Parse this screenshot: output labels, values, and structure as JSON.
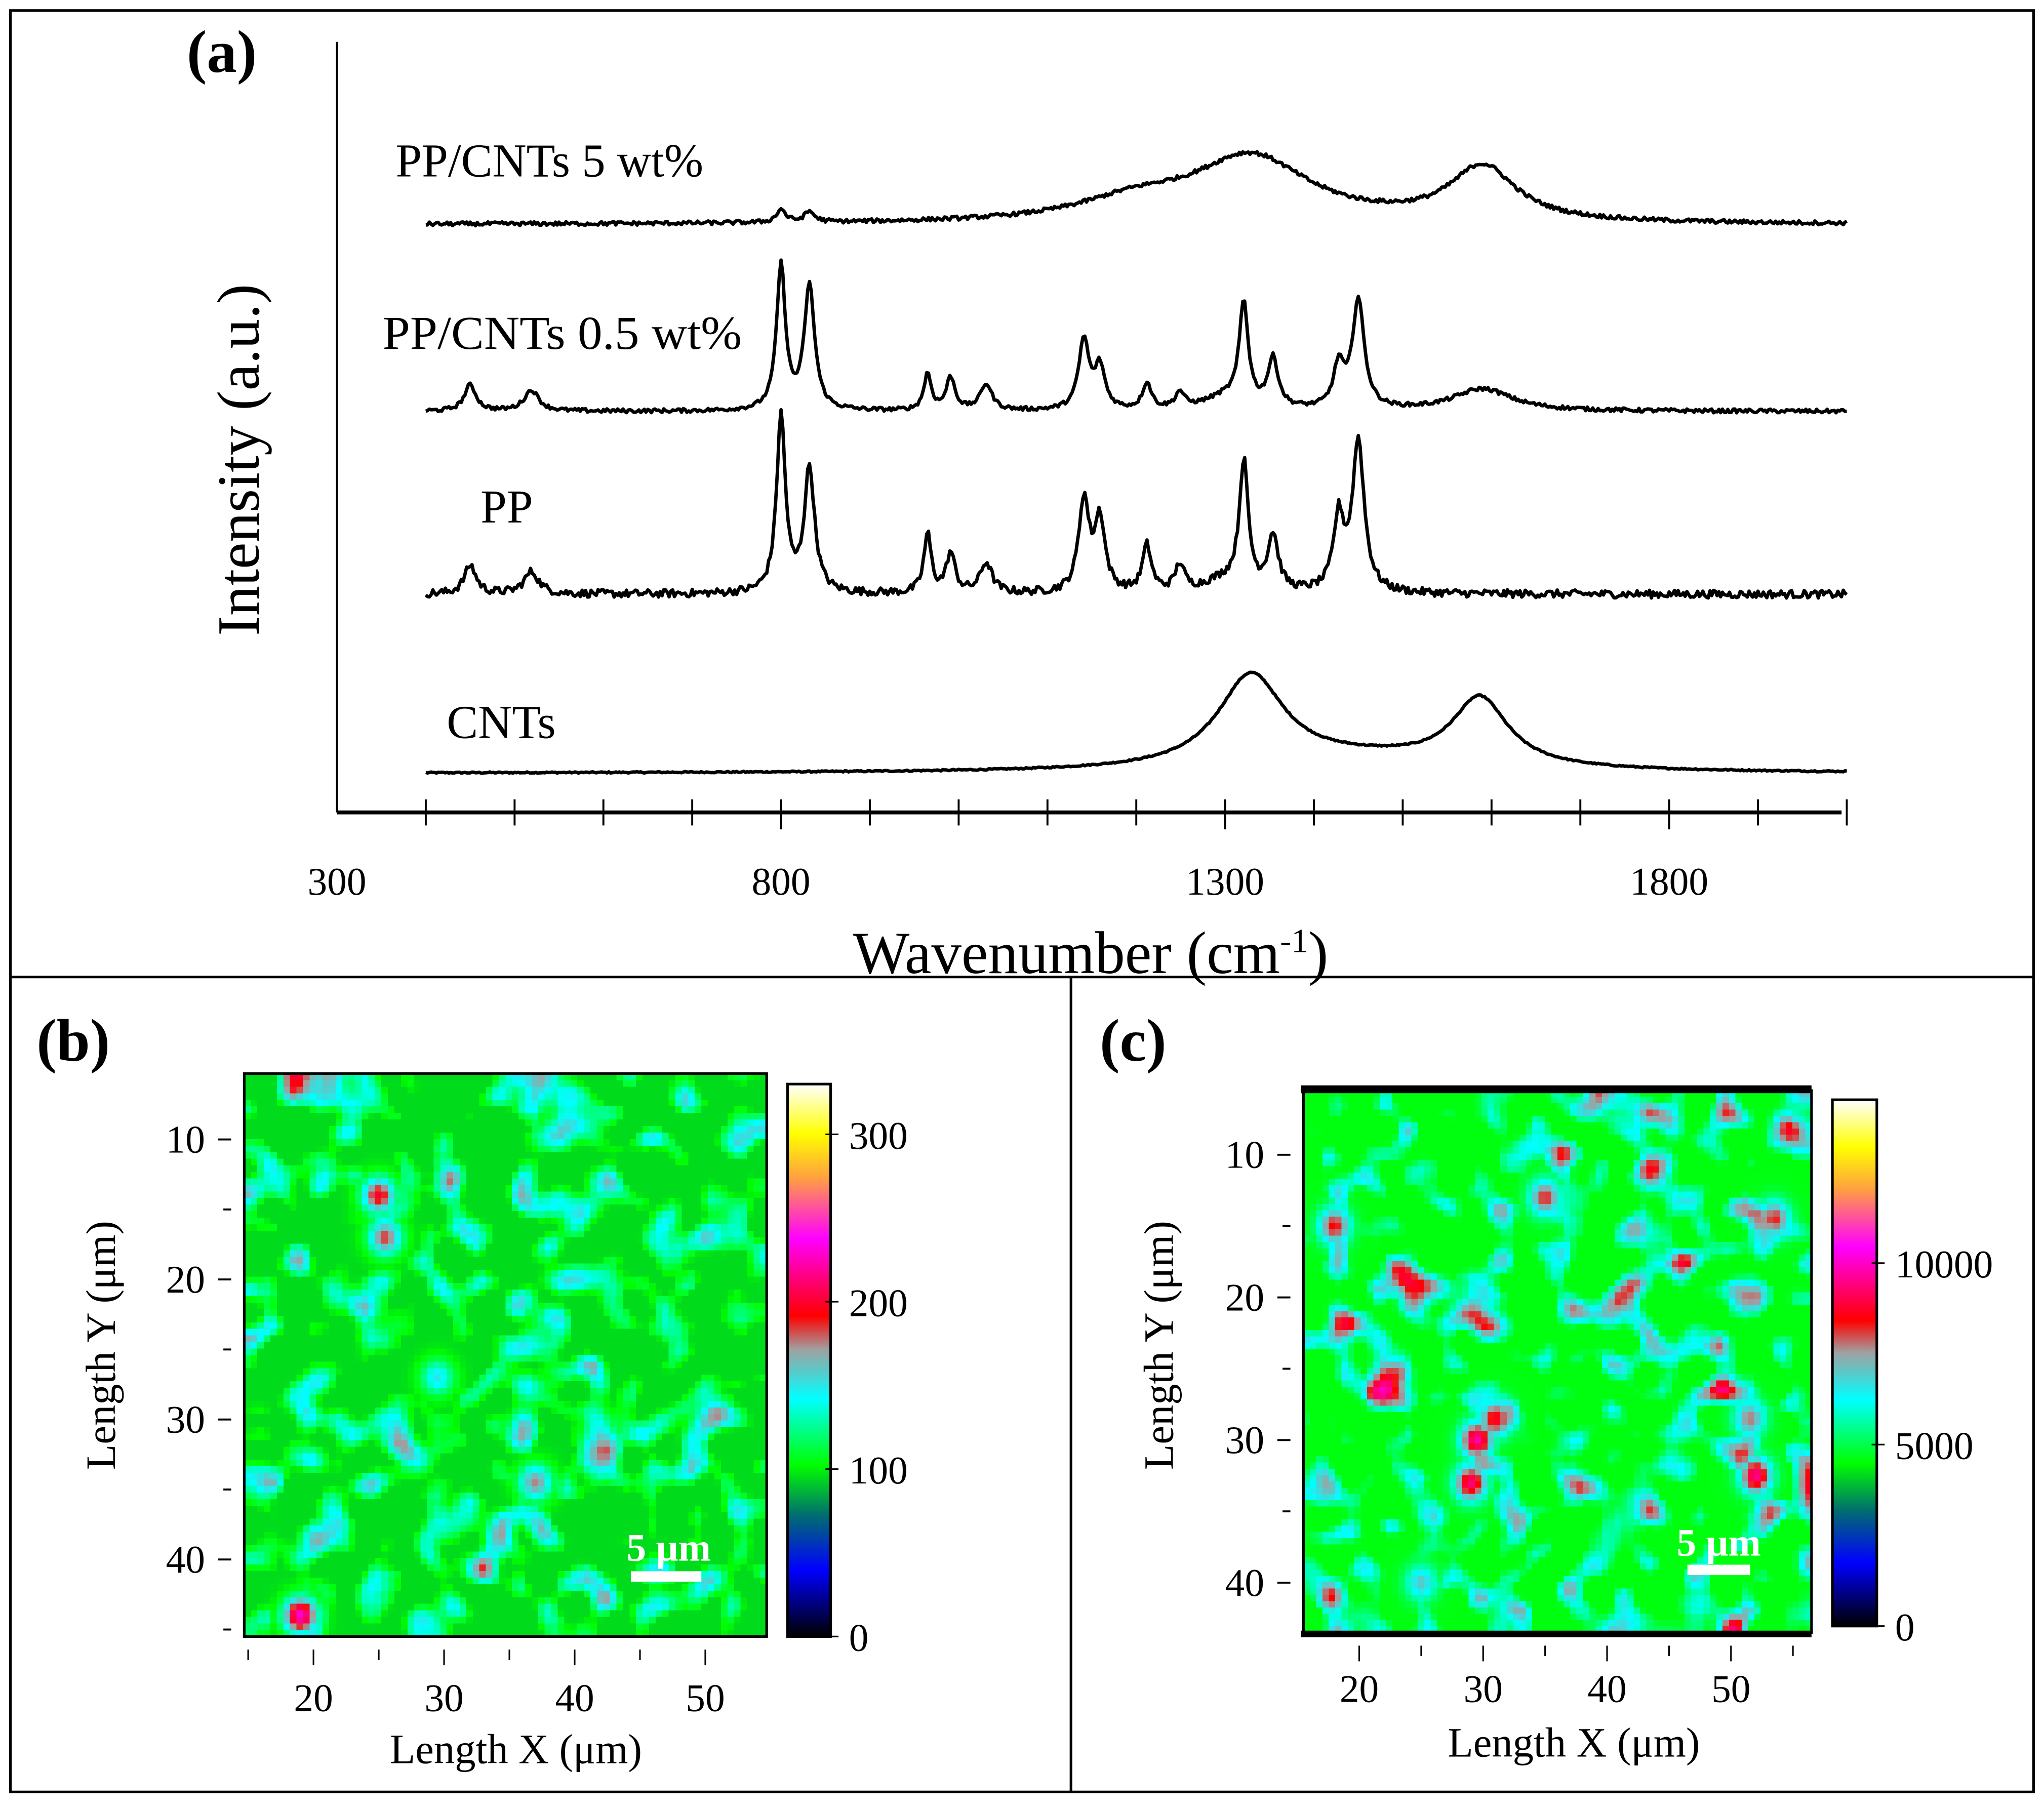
{
  "chart_data": [
    {
      "id": "a",
      "type": "line",
      "panel_label": "(a)",
      "xlabel": "Wavenumber (cm",
      "xlabel_sup": "-1",
      "xlabel_close": ")",
      "ylabel": "Intensity (a.u.)",
      "xlim": [
        300,
        2000
      ],
      "xticks": [
        300,
        800,
        1300,
        1800
      ],
      "xtick_labels": [
        "300",
        "800",
        "1300",
        "1800"
      ],
      "minor_tick_step": 100,
      "data_range": [
        400,
        2000
      ],
      "series": [
        {
          "name": "CNTs",
          "label": "CNTs",
          "baseline": 0,
          "peaks": [
            [
              1329,
              70,
              45
            ],
            [
              1587,
              52,
              38
            ],
            [
              1450,
              10,
              150
            ]
          ],
          "noise": 0.5
        },
        {
          "name": "PP",
          "label": "PP",
          "baseline": 137,
          "peaks": [
            [
              450,
              22,
              8
            ],
            [
              519,
              17,
              10
            ],
            [
              800,
              135,
              6
            ],
            [
              832,
              95,
              7
            ],
            [
              965,
              45,
              5
            ],
            [
              991,
              30,
              6
            ],
            [
              1031,
              23,
              8
            ],
            [
              1141,
              70,
              7
            ],
            [
              1159,
              55,
              7
            ],
            [
              1212,
              35,
              6
            ],
            [
              1249,
              20,
              6
            ],
            [
              1321,
              95,
              6
            ],
            [
              1354,
              42,
              7
            ],
            [
              1428,
              55,
              7
            ],
            [
              1450,
              115,
              8
            ],
            [
              1300,
              10,
              30
            ]
          ],
          "noise": 3
        },
        {
          "name": "PP/CNTs 0.5 wt%",
          "label": "PP/CNTs 0.5 wt%",
          "baseline": 277,
          "peaks": [
            [
              450,
              20,
              8
            ],
            [
              519,
              16,
              10
            ],
            [
              800,
              110,
              6
            ],
            [
              832,
              95,
              7
            ],
            [
              965,
              28,
              5
            ],
            [
              991,
              25,
              6
            ],
            [
              1031,
              20,
              8
            ],
            [
              1141,
              53,
              7
            ],
            [
              1159,
              32,
              7
            ],
            [
              1212,
              20,
              6
            ],
            [
              1249,
              12,
              6
            ],
            [
              1321,
              77,
              6
            ],
            [
              1354,
              37,
              7
            ],
            [
              1428,
              32,
              7
            ],
            [
              1450,
              83,
              8
            ],
            [
              1590,
              17,
              40
            ],
            [
              1300,
              10,
              30
            ]
          ],
          "noise": 1.5
        },
        {
          "name": "PP/CNTs 5 wt%",
          "label": "PP/CNTs 5 wt%",
          "baseline": 420,
          "peaks": [
            [
              800,
              10,
              6
            ],
            [
              832,
              8,
              7
            ],
            [
              1329,
              50,
              80
            ],
            [
              1200,
              15,
              80
            ],
            [
              1590,
              42,
              45
            ]
          ],
          "noise": 1.5
        }
      ]
    },
    {
      "id": "b",
      "type": "heatmap",
      "panel_label": "(b)",
      "xlabel": "Length X (μm)",
      "ylabel": "Length Y (μm)",
      "xlim": [
        14.7,
        54.7
      ],
      "ylim": [
        45.5,
        5.3
      ],
      "xticks": [
        20,
        30,
        40,
        50
      ],
      "yticks": [
        10,
        20,
        30,
        40
      ],
      "colorbar": {
        "range": [
          0,
          330
        ],
        "ticks": [
          0,
          100,
          200,
          300
        ],
        "tick_labels": [
          "0",
          "100",
          "200",
          "300"
        ]
      },
      "mean_value": 95,
      "hotspots": [
        [
          25,
          14,
          200
        ],
        [
          25.5,
          17,
          185
        ],
        [
          19,
          44,
          230
        ],
        [
          37,
          34.5,
          175
        ],
        [
          29.5,
          27,
          150
        ]
      ],
      "scale_bar": "5 μm"
    },
    {
      "id": "c",
      "type": "heatmap",
      "panel_label": "(c)",
      "xlabel": "Length X (μm)",
      "ylabel": "Length Y (μm)",
      "xlim": [
        15.5,
        56.5
      ],
      "ylim": [
        43.5,
        5.5
      ],
      "xticks": [
        20,
        30,
        40,
        50
      ],
      "yticks": [
        10,
        20,
        30,
        40
      ],
      "colorbar": {
        "range": [
          0,
          14500
        ],
        "ticks": [
          0,
          5000,
          10000
        ],
        "tick_labels": [
          "0",
          "5000",
          "10000"
        ]
      },
      "mean_value": 4600,
      "hotspots": [
        [
          29.5,
          30,
          9800
        ],
        [
          29,
          33,
          9400
        ],
        [
          31,
          28.5,
          8800
        ],
        [
          35,
          13,
          8300
        ],
        [
          18,
          15,
          8500
        ],
        [
          53.5,
          14.5,
          8300
        ],
        [
          52,
          32.5,
          9600
        ],
        [
          51.5,
          28.5,
          7800
        ],
        [
          25,
          40,
          7000
        ]
      ],
      "scale_bar": "5 μm"
    }
  ]
}
